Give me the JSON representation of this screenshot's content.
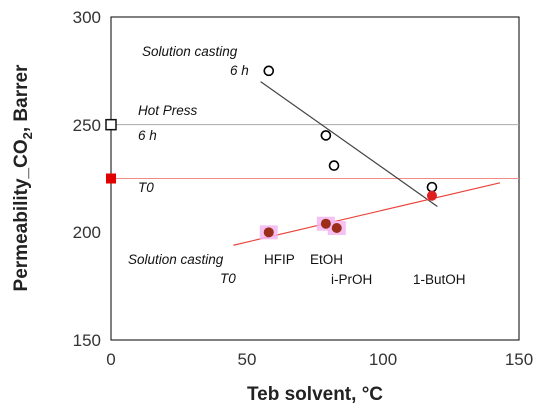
{
  "chart_data": {
    "type": "scatter",
    "xlabel": "Teb solvent, °C",
    "ylabel_parts": [
      "Permeability_CO",
      "2",
      ", Barrer"
    ],
    "xlim": [
      0,
      150
    ],
    "ylim": [
      150,
      300
    ],
    "x_ticks": [
      "0",
      "50",
      "100",
      "150"
    ],
    "y_ticks": [
      "150",
      "200",
      "250",
      "300"
    ],
    "grid": false,
    "series": [
      {
        "marker": "open-circle",
        "color": "#000000",
        "points": [
          {
            "x": 58,
            "y": 275
          },
          {
            "x": 79,
            "y": 245
          },
          {
            "x": 82,
            "y": 231
          },
          {
            "x": 118,
            "y": 221
          }
        ],
        "trendline": {
          "x1": 55,
          "y1": 270,
          "x2": 120,
          "y2": 212,
          "color": "#444444"
        }
      },
      {
        "marker": "filled-circle",
        "color": "#9b2d1a",
        "highlight": "#f3b6f0",
        "points": [
          {
            "x": 58,
            "y": 200
          },
          {
            "x": 79,
            "y": 204
          },
          {
            "x": 83,
            "y": 202
          }
        ]
      },
      {
        "marker": "filled-circle",
        "color": "#e02020",
        "points": [
          {
            "x": 118,
            "y": 217
          }
        ]
      }
    ],
    "red_trendline": {
      "x1": 45,
      "y1": 194,
      "x2": 143,
      "y2": 223,
      "color": "#e8453c"
    },
    "reference_lines": [
      {
        "y": 250,
        "color": "#aaaaaa",
        "marker": "open-square",
        "marker_color": "#111111"
      },
      {
        "y": 225,
        "color": "#f28a8a",
        "marker": "filled-square",
        "marker_color": "#e00000"
      }
    ],
    "annotations": {
      "solution_casting_6h": [
        "Solution casting",
        "6 h"
      ],
      "hot_press": [
        "Hot Press",
        "6 h"
      ],
      "t0_line": "T0",
      "solution_casting_t0": [
        "Solution casting",
        "T0"
      ],
      "solvents": [
        "HFIP",
        "EtOH",
        "i-PrOH",
        "1-ButOH"
      ]
    }
  }
}
